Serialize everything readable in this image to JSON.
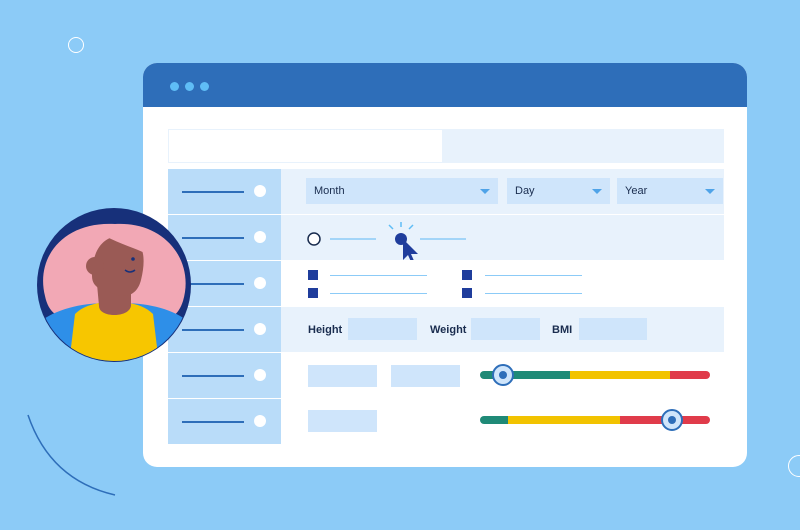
{
  "form": {
    "date": {
      "month": {
        "label": "Month"
      },
      "day": {
        "label": "Day"
      },
      "year": {
        "label": "Year"
      }
    },
    "measurements": {
      "height_label": "Height",
      "weight_label": "Weight",
      "bmi_label": "BMI"
    },
    "radio_group": {
      "selected_index": 1
    },
    "sliders": [
      {
        "value": 0.1,
        "segments": [
          "#1f8a77",
          "#f2c300",
          "#e03b4a"
        ]
      },
      {
        "value": 0.85,
        "segments": [
          "#1f8a77",
          "#f2c300",
          "#e03b4a"
        ]
      }
    ]
  },
  "colors": {
    "background": "#8ccbf7",
    "titlebar": "#2e6eb9",
    "window_dots": "#5fbdf6",
    "accent_dark": "#1f3d9c"
  },
  "icons": [
    "window-dot-icon",
    "radio-icon",
    "checkbox-icon",
    "dropdown-caret-icon",
    "mouse-pointer-icon",
    "click-burst-icon",
    "slider-knob-icon"
  ]
}
